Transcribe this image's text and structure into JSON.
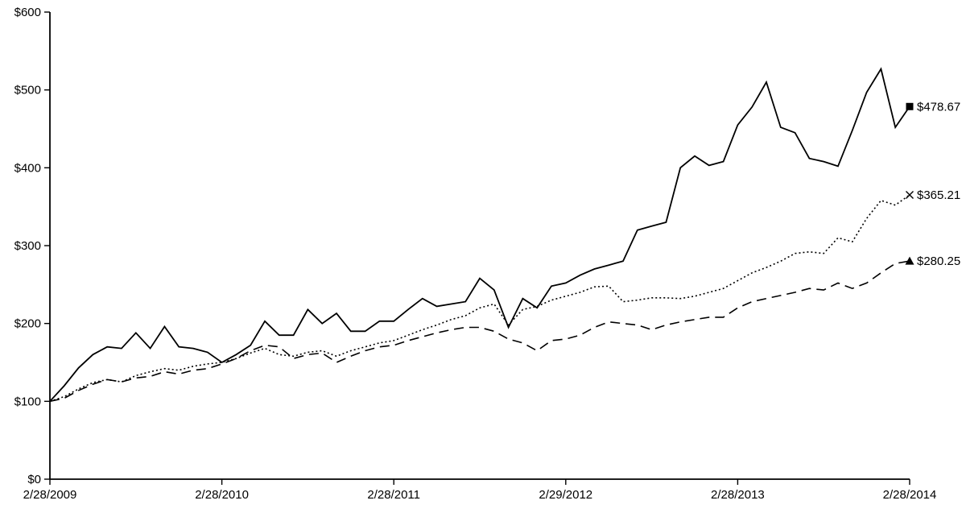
{
  "chart_data": {
    "type": "line",
    "title": "",
    "xlabel": "",
    "ylabel": "",
    "ylim": [
      0,
      600
    ],
    "y_tick_step": 100,
    "x_point_count": 61,
    "grid": false,
    "legend_position": "none",
    "background_color": "#ffffff",
    "axis_color": "#000000",
    "line_color": "#000000",
    "y_tick_labels": [
      "$0",
      "$100",
      "$200",
      "$300",
      "$400",
      "$500",
      "$600"
    ],
    "x_tick_labels": [
      "2/28/2009",
      "2/28/2010",
      "2/28/2011",
      "2/29/2012",
      "2/28/2013",
      "2/28/2014"
    ],
    "series": [
      {
        "name": "series-solid",
        "style": "solid",
        "end_marker": "square",
        "end_label": "$478.67",
        "end_value": 478.67,
        "values": [
          100,
          120,
          143,
          160,
          170,
          168,
          188,
          168,
          196,
          170,
          168,
          163,
          150,
          160,
          172,
          203,
          185,
          185,
          218,
          200,
          213,
          190,
          190,
          203,
          203,
          218,
          232,
          222,
          225,
          228,
          258,
          243,
          195,
          232,
          220,
          248,
          252,
          262,
          270,
          275,
          280,
          320,
          325,
          330,
          400,
          415,
          403,
          408,
          455,
          478,
          510,
          452,
          445,
          412,
          408,
          402,
          448,
          497,
          527,
          452,
          478.67
        ]
      },
      {
        "name": "series-dotted",
        "style": "dotted",
        "end_marker": "x",
        "end_label": "$365.21",
        "end_value": 365.21,
        "values": [
          100,
          106,
          116,
          124,
          128,
          125,
          133,
          138,
          142,
          140,
          145,
          148,
          150,
          155,
          162,
          168,
          160,
          158,
          163,
          165,
          158,
          165,
          170,
          175,
          178,
          185,
          192,
          198,
          205,
          210,
          220,
          225,
          198,
          218,
          222,
          230,
          235,
          240,
          247,
          248,
          228,
          230,
          233,
          233,
          232,
          235,
          240,
          245,
          255,
          265,
          272,
          280,
          290,
          292,
          290,
          310,
          305,
          335,
          358,
          352,
          365.21
        ]
      },
      {
        "name": "series-dashed",
        "style": "dashed",
        "end_marker": "triangle",
        "end_label": "$280.25",
        "end_value": 280.25,
        "values": [
          100,
          104,
          114,
          122,
          128,
          125,
          130,
          132,
          138,
          135,
          140,
          142,
          148,
          155,
          165,
          172,
          170,
          155,
          160,
          162,
          150,
          158,
          165,
          170,
          172,
          178,
          183,
          188,
          192,
          195,
          195,
          190,
          180,
          175,
          165,
          178,
          180,
          185,
          195,
          202,
          200,
          198,
          192,
          198,
          202,
          205,
          208,
          208,
          220,
          228,
          232,
          236,
          240,
          245,
          243,
          252,
          245,
          252,
          265,
          277,
          280.25
        ]
      }
    ]
  }
}
